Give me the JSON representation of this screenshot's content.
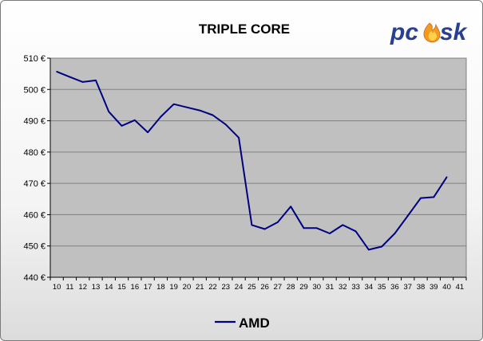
{
  "logo": {
    "text": "pcask",
    "colors": {
      "main": "#2a3f8f",
      "flame_outer": "#f29b20",
      "flame_inner": "#ffd24a"
    }
  },
  "legend": {
    "position": "bottom"
  },
  "colors": {
    "plot_bg": "#c0c0c0",
    "line": "#000080",
    "grid": "#808080"
  },
  "chart_data": {
    "type": "line",
    "title": "TRIPLE CORE",
    "xlabel": "",
    "ylabel": "",
    "categories": [
      "10",
      "11",
      "12",
      "13",
      "14",
      "15",
      "16",
      "17",
      "18",
      "19",
      "20",
      "21",
      "22",
      "23",
      "24",
      "25",
      "26",
      "27",
      "28",
      "29",
      "30",
      "31",
      "32",
      "33",
      "34",
      "35",
      "36",
      "37",
      "38",
      "39",
      "40",
      "41"
    ],
    "ylim": [
      440,
      510
    ],
    "yticks": [
      "440 €",
      "450 €",
      "460 €",
      "470 €",
      "480 €",
      "490 €",
      "500 €",
      "510 €"
    ],
    "ytick_values": [
      440,
      450,
      460,
      470,
      480,
      490,
      500,
      510
    ],
    "grid": true,
    "series": [
      {
        "name": "AMD",
        "color": "#000080",
        "x": [
          10,
          11,
          12,
          13,
          14,
          15,
          16,
          17,
          18,
          19,
          20,
          21,
          22,
          23,
          24,
          25,
          26,
          27,
          28,
          29,
          30,
          31,
          32,
          33,
          34,
          35,
          36,
          37,
          38,
          39,
          40
        ],
        "values": [
          505.7,
          504.0,
          502.4,
          502.9,
          492.9,
          488.4,
          490.2,
          486.3,
          491.3,
          495.3,
          494.3,
          493.3,
          491.8,
          488.8,
          484.6,
          456.7,
          455.4,
          457.6,
          462.6,
          455.7,
          455.7,
          454.0,
          456.7,
          454.7,
          448.8,
          449.8,
          454.0,
          459.6,
          465.3,
          465.6,
          472.0
        ]
      }
    ]
  }
}
